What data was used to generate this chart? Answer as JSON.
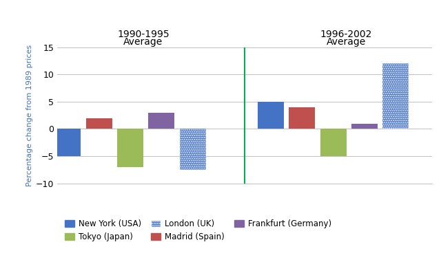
{
  "group1_label_line1": "1990-1995",
  "group1_label_line2": "Average",
  "group2_label_line1": "1996-2002",
  "group2_label_line2": "Average",
  "cities": [
    "New York (USA)",
    "Madrid (Spain)",
    "Tokyo (Japan)",
    "Frankfurt (Germany)",
    "London (UK)"
  ],
  "values_1990_1995": [
    -5,
    2,
    -7,
    3,
    -7.5
  ],
  "values_1996_2002": [
    5,
    4,
    -5,
    1,
    12
  ],
  "colors": {
    "New York (USA)": "#4472C4",
    "Madrid (Spain)": "#C0504D",
    "Tokyo (Japan)": "#9BBB59",
    "Frankfurt (Germany)": "#8064A2",
    "London (UK)": "#4472C4"
  },
  "ylabel": "Percentage change from 1989 prices",
  "ylim": [
    -10,
    15
  ],
  "yticks": [
    -10,
    -5,
    0,
    5,
    10,
    15
  ],
  "divider_color": "#00B050",
  "background_color": "#FFFFFF",
  "legend_order": [
    "New York (USA)",
    "Tokyo (Japan)",
    "London (UK)",
    "Madrid (Spain)",
    "Frankfurt (Germany)"
  ]
}
